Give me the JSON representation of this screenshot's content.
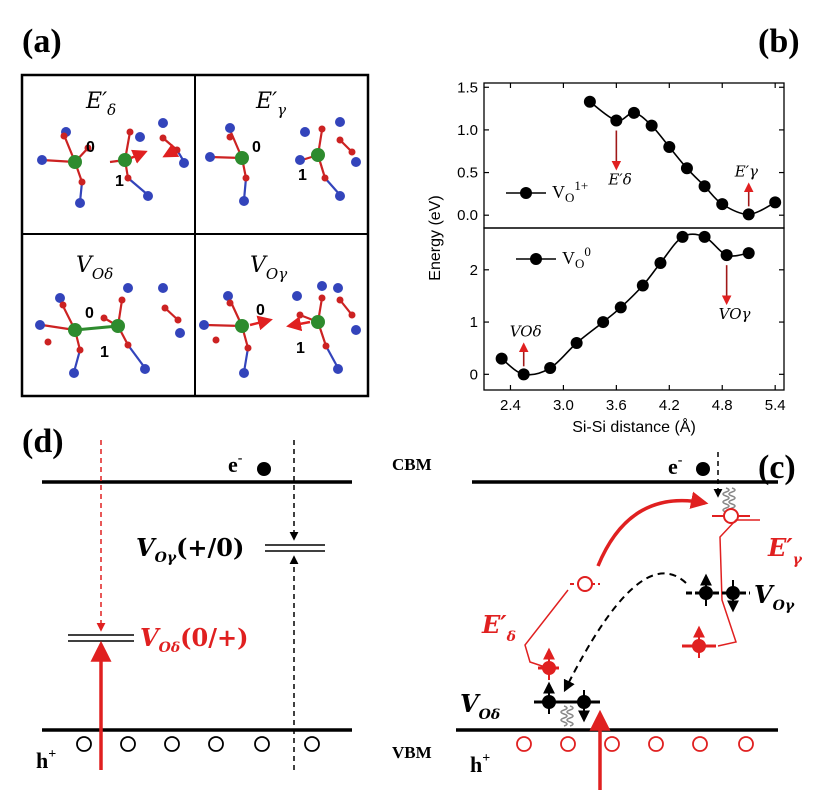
{
  "panels": {
    "a": "(a)",
    "b": "(b)",
    "c": "(c)",
    "d": "(d)"
  },
  "panel_a": {
    "cells": [
      {
        "label": "E",
        "sub": "δ",
        "prime": "′"
      },
      {
        "label": "E",
        "sub": "γ",
        "prime": "′"
      },
      {
        "label": "V",
        "sub": "Oδ",
        "prime": ""
      },
      {
        "label": "V",
        "sub": "Oγ",
        "prime": ""
      }
    ],
    "site_0": "0",
    "site_1": "1",
    "colors": {
      "si": "#2e8b2e",
      "o": "#cc2222",
      "far_o": "#3344bb",
      "arrow": "#e02020"
    }
  },
  "chart_data": [
    {
      "type": "line",
      "series": [
        {
          "name": "Vo1+",
          "x": [
            3.3,
            3.6,
            3.8,
            4.0,
            4.2,
            4.4,
            4.6,
            4.8,
            5.1,
            5.4
          ],
          "y": [
            1.33,
            1.11,
            1.2,
            1.05,
            0.8,
            0.55,
            0.34,
            0.13,
            0.01,
            0.15
          ]
        }
      ],
      "xlim": [
        2.1,
        5.5
      ],
      "ylim": [
        -0.15,
        1.55
      ],
      "yticks": [
        "0.0",
        "0.5",
        "1.0",
        "1.5"
      ],
      "annotations": [
        {
          "text": "E′δ",
          "x": 3.6,
          "direction": "down"
        },
        {
          "text": "E′γ",
          "x": 5.1,
          "direction": "up"
        }
      ],
      "legend": "left"
    },
    {
      "type": "line",
      "series": [
        {
          "name": "Vo0",
          "x": [
            2.3,
            2.55,
            2.85,
            3.15,
            3.45,
            3.65,
            3.9,
            4.1,
            4.35,
            4.6,
            4.85,
            5.1
          ],
          "y": [
            0.3,
            0.0,
            0.12,
            0.6,
            1.0,
            1.28,
            1.7,
            2.13,
            2.63,
            2.63,
            2.28,
            2.32
          ]
        }
      ],
      "xlim": [
        2.1,
        5.5
      ],
      "ylim": [
        -0.3,
        2.8
      ],
      "yticks": [
        "0",
        "1",
        "2"
      ],
      "xticks": [
        "2.4",
        "3.0",
        "3.6",
        "4.2",
        "4.8",
        "5.4"
      ],
      "annotations": [
        {
          "text": "VOδ",
          "x": 2.55,
          "direction": "up"
        },
        {
          "text": "VOγ",
          "x": 4.85,
          "direction": "down"
        }
      ],
      "legend": "top-left"
    }
  ],
  "axes": {
    "ylabel": "Energy (eV)",
    "xlabel": "Si-Si distance (Å)",
    "legend_top": {
      "base": "V",
      "sub": "O",
      "sup": "1+"
    },
    "legend_bottom": {
      "base": "V",
      "sub": "O",
      "sup": "0"
    }
  },
  "panel_d": {
    "electron": "e",
    "hole": "h",
    "minus": "-",
    "plus": "+",
    "level_gamma": {
      "main": "V",
      "sub": "Oγ",
      "rest": "(+/0)"
    },
    "level_delta": {
      "main": "V",
      "sub": "Oδ",
      "rest": "(0/+)"
    },
    "colors": {
      "red": "#e02020",
      "black": "#000000"
    }
  },
  "panel_c": {
    "cbm": "CBM",
    "vbm": "VBM",
    "electron": "e",
    "hole": "h",
    "minus": "-",
    "plus": "+",
    "e_gamma": {
      "main": "E′",
      "sub": "γ"
    },
    "e_delta": {
      "main": "E′",
      "sub": "δ"
    },
    "v_gamma": {
      "main": "V",
      "sub": "Oγ"
    },
    "v_delta": {
      "main": "V",
      "sub": "Oδ"
    }
  }
}
